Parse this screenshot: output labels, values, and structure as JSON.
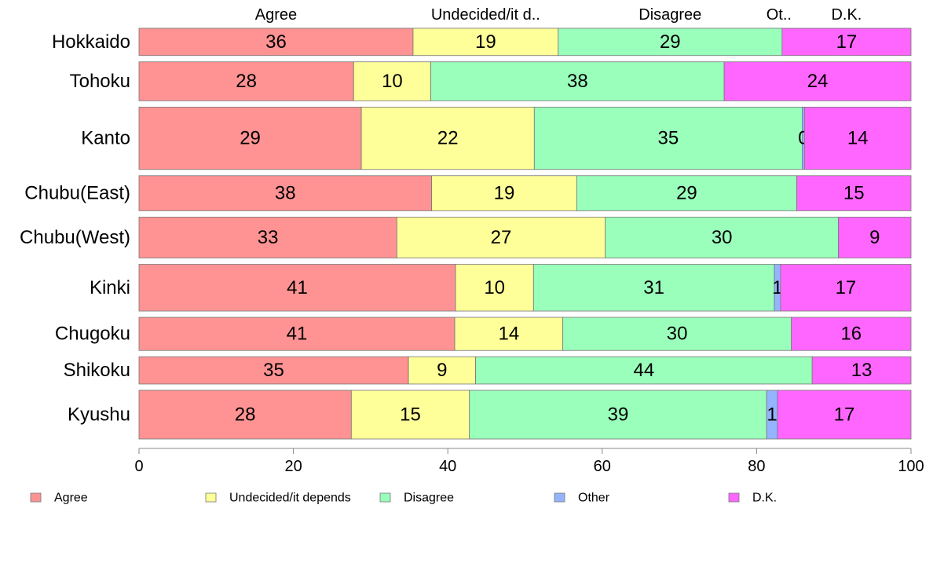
{
  "chart_data": {
    "type": "bar",
    "orientation": "horizontal",
    "stacked": true,
    "categories": [
      "Hokkaido",
      "Tohoku",
      "Kanto",
      "Chubu(East)",
      "Chubu(West)",
      "Kinki",
      "Chugoku",
      "Shikoku",
      "Kyushu"
    ],
    "bar_weights": [
      0.7,
      1.0,
      1.6,
      0.9,
      1.05,
      1.2,
      0.85,
      0.7,
      1.25
    ],
    "series": [
      {
        "name": "Agree",
        "color": "#ff9393",
        "values": [
          35.5,
          27.8,
          28.8,
          37.9,
          33.4,
          41.0,
          40.9,
          34.9,
          27.5
        ]
      },
      {
        "name": "Undecided/it depends",
        "color": "#ffff99",
        "values": [
          18.8,
          10.0,
          22.4,
          18.8,
          27.0,
          10.1,
          14.0,
          8.7,
          15.3
        ]
      },
      {
        "name": "Disagree",
        "color": "#99ffbb",
        "values": [
          29.0,
          38.0,
          34.7,
          28.5,
          30.2,
          31.2,
          29.6,
          43.6,
          38.5
        ]
      },
      {
        "name": "Other",
        "color": "#94b4ff",
        "values": [
          0.0,
          0.0,
          0.3,
          0.0,
          0.0,
          0.8,
          0.0,
          0.0,
          1.4
        ]
      },
      {
        "name": "D.K.",
        "color": "#ff66ff",
        "values": [
          16.7,
          24.2,
          13.8,
          14.8,
          9.4,
          16.9,
          15.5,
          12.8,
          17.3
        ]
      }
    ],
    "top_labels": [
      "Agree",
      "Undecided/it d..",
      "Disagree",
      "Ot..",
      "D.K."
    ],
    "x_ticks": [
      0,
      20,
      40,
      60,
      80,
      100
    ],
    "xlim": [
      0,
      100
    ],
    "xlabel": "",
    "ylabel": "",
    "grid": false,
    "legend_position": "bottom"
  }
}
